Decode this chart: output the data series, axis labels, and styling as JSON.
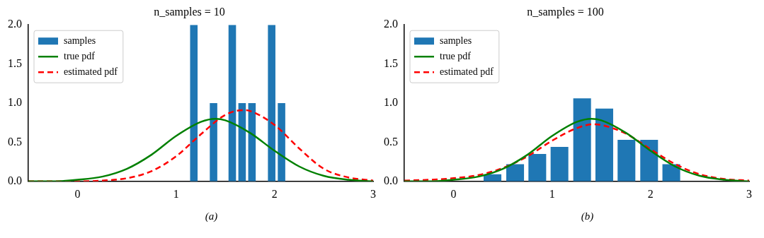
{
  "chart_data": [
    {
      "type": "histogram",
      "title": "n_samples = 10",
      "annotations": [
        "(a)"
      ],
      "bins": [
        1.13,
        1.23,
        1.33,
        1.43,
        1.52,
        1.62,
        1.72,
        1.82,
        1.92,
        2.02,
        2.12
      ],
      "xlim": [
        -0.5,
        3
      ],
      "xticks": [
        0,
        1,
        2,
        3
      ],
      "ylim": [
        0,
        2
      ],
      "yticks": [
        {
          "value": 0,
          "label": "0.0"
        },
        {
          "value": 0.5,
          "label": "0.5"
        },
        {
          "value": 1,
          "label": "1.0"
        },
        {
          "value": 1.5,
          "label": "1.5"
        },
        {
          "value": 2,
          "label": "2.0"
        }
      ],
      "grid": false,
      "legend": "top left",
      "series": [
        {
          "name": "samples",
          "color": "#1f77b4",
          "values": [
            2,
            0,
            1,
            0,
            2,
            1,
            1,
            0,
            2,
            1
          ]
        },
        {
          "name": "true pdf",
          "type": "line",
          "color": "#008000",
          "line_style": "solid",
          "x": [
            -0.5,
            -0.25,
            0,
            0.25,
            0.5,
            0.75,
            1,
            1.25,
            1.4,
            1.5,
            1.75,
            2,
            2.25,
            2.5,
            2.75,
            3
          ],
          "values": [
            0,
            0,
            0.02,
            0.06,
            0.16,
            0.34,
            0.58,
            0.76,
            0.8,
            0.78,
            0.62,
            0.39,
            0.19,
            0.07,
            0.02,
            0
          ]
        },
        {
          "name": "estimated pdf",
          "type": "line",
          "color": "#ff0000",
          "line_style": "dashed",
          "x": [
            -0.5,
            -0.25,
            0,
            0.25,
            0.5,
            0.75,
            1,
            1.25,
            1.5,
            1.68,
            1.75,
            2,
            2.25,
            2.5,
            2.75,
            3
          ],
          "values": [
            0,
            0,
            0,
            0.01,
            0.04,
            0.13,
            0.32,
            0.6,
            0.85,
            0.91,
            0.9,
            0.72,
            0.42,
            0.16,
            0.05,
            0.01
          ]
        }
      ]
    },
    {
      "type": "histogram",
      "title": "n_samples = 100",
      "annotations": [
        "(b)"
      ],
      "bins": [
        0.28,
        0.51,
        0.74,
        0.96,
        1.19,
        1.42,
        1.64,
        1.87,
        2.1,
        2.32
      ],
      "xlim": [
        -0.5,
        3
      ],
      "xticks": [
        0,
        1,
        2,
        3
      ],
      "ylim": [
        0,
        2
      ],
      "yticks": [
        {
          "value": 0,
          "label": "0.0"
        },
        {
          "value": 0.5,
          "label": "0.5"
        },
        {
          "value": 1,
          "label": "1.0"
        },
        {
          "value": 1.5,
          "label": "1.5"
        },
        {
          "value": 2,
          "label": "2.0"
        }
      ],
      "grid": false,
      "legend": "top left",
      "series": [
        {
          "name": "samples",
          "color": "#1f77b4",
          "values": [
            0.09,
            0.22,
            0.35,
            0.44,
            1.06,
            0.93,
            0.53,
            0.53,
            0.22
          ]
        },
        {
          "name": "true pdf",
          "type": "line",
          "color": "#008000",
          "line_style": "solid",
          "x": [
            -0.5,
            -0.25,
            0,
            0.25,
            0.5,
            0.75,
            1,
            1.25,
            1.4,
            1.5,
            1.75,
            2,
            2.25,
            2.5,
            2.75,
            3
          ],
          "values": [
            0,
            0,
            0.02,
            0.06,
            0.16,
            0.34,
            0.58,
            0.76,
            0.8,
            0.78,
            0.62,
            0.39,
            0.19,
            0.07,
            0.02,
            0
          ]
        },
        {
          "name": "estimated pdf",
          "type": "line",
          "color": "#ff0000",
          "line_style": "dashed",
          "x": [
            -0.5,
            -0.25,
            0,
            0.25,
            0.5,
            0.75,
            1,
            1.25,
            1.42,
            1.5,
            1.75,
            2,
            2.25,
            2.5,
            2.75,
            3
          ],
          "values": [
            0.01,
            0.02,
            0.04,
            0.08,
            0.17,
            0.32,
            0.52,
            0.68,
            0.73,
            0.72,
            0.61,
            0.41,
            0.22,
            0.09,
            0.03,
            0.01
          ]
        }
      ]
    }
  ]
}
